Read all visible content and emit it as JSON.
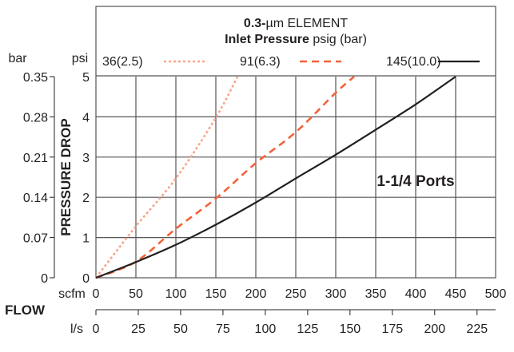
{
  "chart_data": {
    "type": "line",
    "title": "0.3-µm ELEMENT",
    "title_bold": "0.3-",
    "title_rest": "µm ELEMENT",
    "subtitle_bold": "Inlet Pressure",
    "subtitle_rest": " psig (bar)",
    "annotation": "1-1/4 Ports",
    "ylabel": "PRESSURE DROP",
    "xlabel": "FLOW",
    "y_unit_left": "bar",
    "y_unit_right": "psi",
    "x_unit_top": "scfm",
    "x_unit_bottom": "l/s",
    "xlim": [
      0,
      500
    ],
    "ylim": [
      0,
      5
    ],
    "grid": true,
    "legend_placement": "top",
    "x_ticks": [
      "0",
      "50",
      "100",
      "150",
      "200",
      "250",
      "300",
      "350",
      "400",
      "450",
      "500"
    ],
    "y_ticks": [
      "0",
      "1",
      "2",
      "3",
      "4",
      "5"
    ],
    "bar_ticks": [
      "0",
      "0.07",
      "0.14",
      "0.21",
      "0.28",
      "0.35"
    ],
    "ls_ticks": [
      "0",
      "25",
      "50",
      "75",
      "100",
      "125",
      "150",
      "175",
      "200",
      "225"
    ],
    "series": [
      {
        "name": "36(2.5)",
        "style": "dotted",
        "color": "#f9a58a",
        "x": [
          0,
          50,
          100,
          150,
          177
        ],
        "y": [
          0,
          1.28,
          2.47,
          3.98,
          5
        ]
      },
      {
        "name": "91(6.3)",
        "style": "dashed",
        "color": "#f4623a",
        "x": [
          0,
          50,
          100,
          150,
          200,
          250,
          300,
          323
        ],
        "y": [
          0,
          0.4,
          1.22,
          1.97,
          2.85,
          3.62,
          4.6,
          5
        ]
      },
      {
        "name": "145(10.0)",
        "style": "solid",
        "color": "#231f20",
        "x": [
          0,
          50,
          100,
          150,
          200,
          250,
          300,
          350,
          400,
          450
        ],
        "y": [
          0,
          0.39,
          0.82,
          1.32,
          1.87,
          2.47,
          3.06,
          3.68,
          4.31,
          5
        ]
      }
    ]
  }
}
